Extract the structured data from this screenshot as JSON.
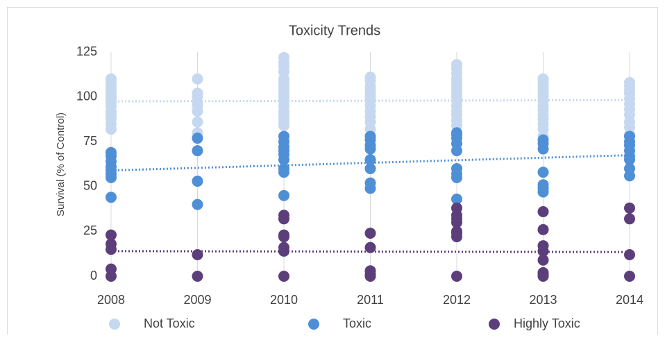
{
  "chart_data": {
    "type": "scatter",
    "title": "Toxicity Trends",
    "y_label": "Survival (% of Control)",
    "xlim": [
      2008,
      2014
    ],
    "xticks": [
      2008,
      2009,
      2010,
      2011,
      2012,
      2013,
      2014
    ],
    "ylim": [
      0,
      125
    ],
    "yticks": [
      0,
      25,
      50,
      75,
      100,
      125
    ],
    "grid": "vertical",
    "legend": "bottom",
    "series": [
      {
        "name": "Not Toxic",
        "color": "#c5d8ef",
        "x": [
          2008,
          2008,
          2008,
          2008,
          2008,
          2008,
          2008,
          2008,
          2008,
          2008,
          2008,
          2008,
          2008,
          2008,
          2009,
          2009,
          2009,
          2009,
          2009,
          2009,
          2009,
          2009,
          2009,
          2010,
          2010,
          2010,
          2010,
          2010,
          2010,
          2010,
          2010,
          2010,
          2010,
          2010,
          2010,
          2010,
          2010,
          2010,
          2010,
          2010,
          2011,
          2011,
          2011,
          2011,
          2011,
          2011,
          2011,
          2011,
          2011,
          2011,
          2011,
          2011,
          2011,
          2012,
          2012,
          2012,
          2012,
          2012,
          2012,
          2012,
          2012,
          2012,
          2012,
          2012,
          2012,
          2012,
          2012,
          2012,
          2013,
          2013,
          2013,
          2013,
          2013,
          2013,
          2013,
          2013,
          2013,
          2013,
          2013,
          2013,
          2013,
          2013,
          2014,
          2014,
          2014,
          2014,
          2014,
          2014,
          2014,
          2014,
          2014,
          2014,
          2014
        ],
        "values": [
          82,
          85,
          88,
          90,
          92,
          95,
          97,
          99,
          100,
          102,
          104,
          106,
          108,
          110,
          77,
          80,
          86,
          92,
          95,
          97,
          100,
          102,
          110,
          84,
          86,
          88,
          90,
          92,
          95,
          98,
          100,
          102,
          104,
          106,
          108,
          110,
          114,
          117,
          119,
          122,
          78,
          82,
          86,
          89,
          92,
          95,
          98,
          100,
          102,
          104,
          106,
          109,
          111,
          84,
          87,
          90,
          92,
          95,
          98,
          100,
          102,
          104,
          106,
          108,
          110,
          113,
          116,
          118,
          78,
          82,
          85,
          88,
          90,
          93,
          95,
          98,
          100,
          102,
          104,
          106,
          108,
          110,
          79,
          83,
          86,
          90,
          93,
          96,
          99,
          102,
          104,
          106,
          108
        ],
        "trend": {
          "x": [
            2008,
            2014
          ],
          "values": [
            97.5,
            98.2
          ]
        }
      },
      {
        "name": "Toxic",
        "color": "#4f8fd6",
        "x": [
          2008,
          2008,
          2008,
          2008,
          2008,
          2008,
          2008,
          2008,
          2009,
          2009,
          2009,
          2009,
          2010,
          2010,
          2010,
          2010,
          2010,
          2010,
          2010,
          2010,
          2010,
          2011,
          2011,
          2011,
          2011,
          2011,
          2011,
          2011,
          2011,
          2012,
          2012,
          2012,
          2012,
          2012,
          2012,
          2012,
          2012,
          2012,
          2013,
          2013,
          2013,
          2013,
          2013,
          2013,
          2013,
          2014,
          2014,
          2014,
          2014,
          2014,
          2014,
          2014,
          2014
        ],
        "values": [
          44,
          55,
          57,
          59,
          61,
          64,
          67,
          69,
          40,
          53,
          70,
          77,
          45,
          58,
          60,
          65,
          68,
          70,
          72,
          75,
          78,
          49,
          52,
          60,
          65,
          71,
          73,
          76,
          78,
          43,
          55,
          57,
          60,
          70,
          74,
          77,
          79,
          80,
          47,
          49,
          51,
          58,
          71,
          74,
          76,
          56,
          60,
          65,
          67,
          70,
          73,
          75,
          78
        ],
        "trend": {
          "x": [
            2008,
            2014
          ],
          "values": [
            59,
            67.5
          ]
        }
      },
      {
        "name": "Highly Toxic",
        "color": "#5c3f7a",
        "x": [
          2008,
          2008,
          2008,
          2008,
          2008,
          2009,
          2009,
          2010,
          2010,
          2010,
          2010,
          2010,
          2010,
          2010,
          2011,
          2011,
          2011,
          2011,
          2011,
          2012,
          2012,
          2012,
          2012,
          2012,
          2012,
          2012,
          2012,
          2013,
          2013,
          2013,
          2013,
          2013,
          2013,
          2013,
          2013,
          2014,
          2014,
          2014,
          2014
        ],
        "values": [
          0,
          4,
          15,
          18,
          23,
          0,
          12,
          0,
          14,
          16,
          22,
          23,
          32,
          34,
          0,
          1,
          3,
          16,
          24,
          0,
          22,
          24,
          25,
          30,
          32,
          34,
          38,
          0,
          1,
          2,
          9,
          14,
          17,
          26,
          36,
          0,
          12,
          32,
          38
        ],
        "trend": {
          "x": [
            2008,
            2014
          ],
          "values": [
            14,
            13.5
          ]
        }
      }
    ]
  }
}
